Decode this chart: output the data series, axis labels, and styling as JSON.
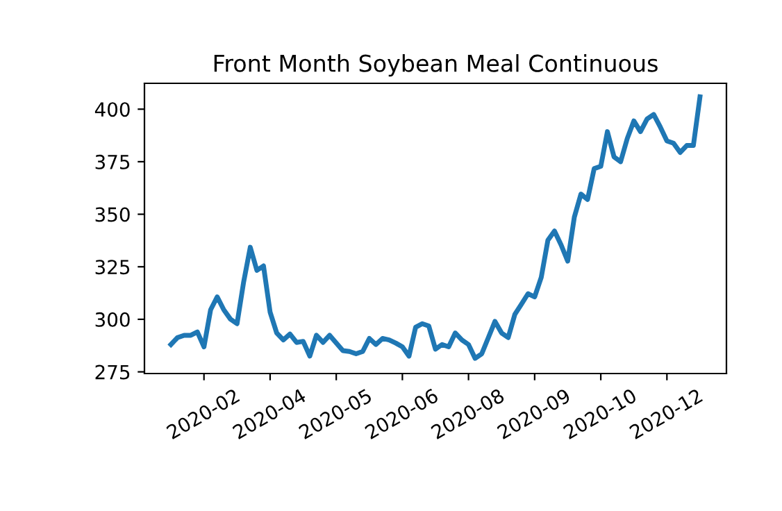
{
  "chart_data": {
    "type": "line",
    "title": "Front Month Soybean Meal Continuous",
    "categories": [
      null,
      null,
      null,
      null,
      null,
      "2020-02",
      null,
      null,
      null,
      null,
      null,
      null,
      null,
      null,
      null,
      "2020-04",
      null,
      null,
      null,
      null,
      null,
      null,
      null,
      null,
      null,
      "2020-05",
      null,
      null,
      null,
      null,
      null,
      null,
      null,
      null,
      null,
      "2020-06",
      null,
      null,
      null,
      null,
      null,
      null,
      null,
      null,
      null,
      "2020-08",
      null,
      null,
      null,
      null,
      null,
      null,
      null,
      null,
      null,
      "2020-09",
      null,
      null,
      null,
      null,
      null,
      null,
      null,
      null,
      null,
      "2020-10",
      null,
      null,
      null,
      null,
      null,
      null,
      null,
      null,
      null,
      "2020-12",
      null,
      null,
      null,
      null,
      null
    ],
    "series": [
      {
        "color": "#1f77b4",
        "values": [
          288,
          291.3,
          292.4,
          292.4,
          294,
          286.9,
          304.5,
          310.7,
          304.5,
          300.1,
          297.9,
          317.8,
          334.3,
          323.3,
          325.4,
          303.4,
          293.5,
          290.2,
          293,
          289,
          289.5,
          282.5,
          292.4,
          289,
          292.4,
          288.7,
          285.1,
          284.7,
          283.6,
          284.7,
          290.9,
          288,
          290.9,
          290.2,
          288.7,
          286.9,
          282.5,
          296.2,
          297.9,
          296.8,
          285.8,
          288,
          286.9,
          293.5,
          290.2,
          288,
          281.4,
          283.6,
          291.3,
          299,
          293.5,
          291.3,
          302.3,
          307.2,
          312.2,
          310.7,
          320,
          337.6,
          342,
          335.4,
          327.7,
          348.6,
          359.6,
          357,
          371.7,
          372.8,
          389.3,
          377.3,
          375,
          386,
          394.4,
          389.3,
          395.3,
          397.5,
          391.5,
          384.9,
          383.8,
          379.4,
          382.7,
          382.7,
          405.9
        ]
      }
    ],
    "ylim": [
      274.2,
      412.3
    ],
    "yticks": [
      275,
      300,
      325,
      350,
      375,
      400
    ],
    "grid": false
  }
}
